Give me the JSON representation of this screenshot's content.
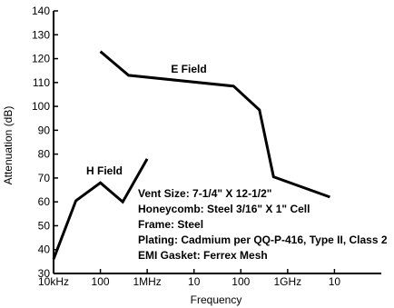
{
  "chart_data": {
    "type": "line",
    "title": "",
    "xlabel": "Frequency",
    "ylabel": "Attenuation (dB)",
    "x_scale": "log",
    "x_unit": "Hz",
    "xlim": [
      10000,
      100000000000
    ],
    "ylim": [
      30,
      140
    ],
    "grid": false,
    "x_ticks": [
      {
        "value": 10000,
        "label": "10kHz"
      },
      {
        "value": 100000,
        "label": "100"
      },
      {
        "value": 1000000,
        "label": "1MHz"
      },
      {
        "value": 10000000,
        "label": "10"
      },
      {
        "value": 100000000,
        "label": "100"
      },
      {
        "value": 1000000000,
        "label": "1GHz"
      },
      {
        "value": 10000000000,
        "label": "10"
      }
    ],
    "y_ticks": [
      30,
      40,
      50,
      60,
      70,
      80,
      90,
      100,
      110,
      120,
      130,
      140
    ],
    "series": [
      {
        "name": "E Field",
        "points": [
          {
            "x": 100000,
            "y": 123
          },
          {
            "x": 400000,
            "y": 113
          },
          {
            "x": 70000000,
            "y": 108.5
          },
          {
            "x": 250000000,
            "y": 98.5
          },
          {
            "x": 500000000,
            "y": 70.5
          },
          {
            "x": 8000000000,
            "y": 62
          }
        ]
      },
      {
        "name": "H Field",
        "points": [
          {
            "x": 10000,
            "y": 36
          },
          {
            "x": 30000,
            "y": 60.5
          },
          {
            "x": 100000,
            "y": 68
          },
          {
            "x": 300000,
            "y": 60
          },
          {
            "x": 1000000,
            "y": 78
          }
        ]
      }
    ],
    "annotations": [
      "Vent Size: 7-1/4\" X 12-1/2\"",
      "Honeycomb: Steel 3/16\" X 1\" Cell",
      "Frame: Steel",
      "Plating: Cadmium per QQ-P-416, Type II, Class 2",
      "EMI Gasket: Ferrex Mesh"
    ]
  }
}
